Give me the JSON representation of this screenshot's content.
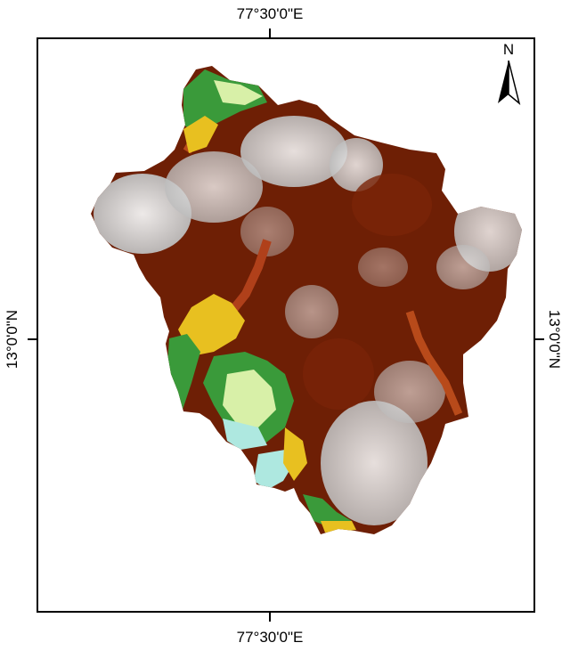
{
  "map": {
    "graticule": {
      "longitude_label": "77°30'0\"E",
      "latitude_label": "13°0'0\"N"
    },
    "north_arrow": {
      "label": "N"
    },
    "colors": {
      "frame": "#000000",
      "high_elevation": "#dcdcdc",
      "upper_mid_elevation": "#8a2a0a",
      "mid_elevation": "#6e1f05",
      "transition": "#c8781e",
      "lower_mid": "#e8c020",
      "low_green": "#3a9a3a",
      "lowest": "#d8f0a8",
      "water": "#aee8e0"
    }
  }
}
